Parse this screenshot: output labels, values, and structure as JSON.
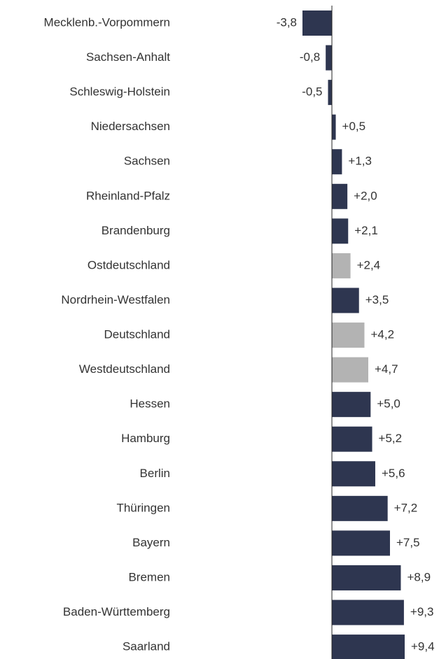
{
  "chart_data": {
    "type": "barh",
    "categories": [
      "Mecklenb.-Vorpommern",
      "Sachsen-Anhalt",
      "Schleswig-Holstein",
      "Niedersachsen",
      "Sachsen",
      "Rheinland-Pfalz",
      "Brandenburg",
      "Ostdeutschland",
      "Nordrhein-Westfalen",
      "Deutschland",
      "Westdeutschland",
      "Hessen",
      "Hamburg",
      "Berlin",
      "Thüringen",
      "Bayern",
      "Bremen",
      "Baden-Württemberg",
      "Saarland"
    ],
    "values": [
      -3.8,
      -0.8,
      -0.5,
      0.5,
      1.3,
      2.0,
      2.1,
      2.4,
      3.5,
      4.2,
      4.7,
      5.0,
      5.2,
      5.6,
      7.2,
      7.5,
      8.9,
      9.3,
      9.4
    ],
    "value_labels": [
      "-3,8",
      "-0,8",
      "-0,5",
      "+0,5",
      "+1,3",
      "+2,0",
      "+2,1",
      "+2,4",
      "+3,5",
      "+4,2",
      "+4,7",
      "+5,0",
      "+5,2",
      "+5,6",
      "+7,2",
      "+7,5",
      "+8,9",
      "+9,3",
      "+9,4"
    ],
    "colors": [
      "#2e3650",
      "#2e3650",
      "#2e3650",
      "#2e3650",
      "#2e3650",
      "#2e3650",
      "#2e3650",
      "#b3b3b3",
      "#2e3650",
      "#b3b3b3",
      "#b3b3b3",
      "#2e3650",
      "#2e3650",
      "#2e3650",
      "#2e3650",
      "#2e3650",
      "#2e3650",
      "#2e3650",
      "#2e3650"
    ],
    "xlim": [
      -3.8,
      9.4
    ]
  }
}
